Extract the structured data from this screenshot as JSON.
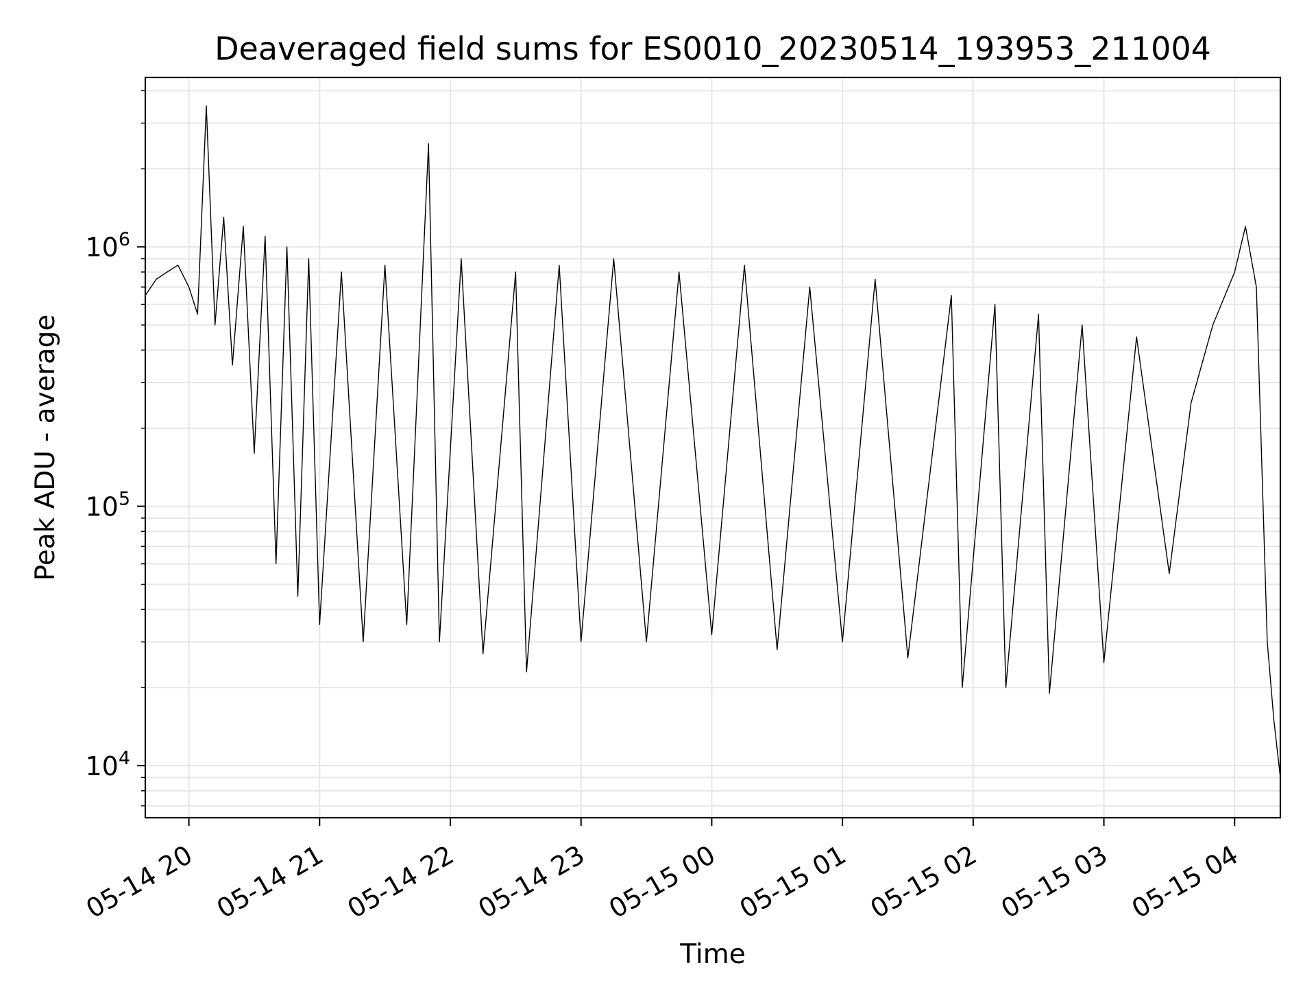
{
  "chart_data": {
    "type": "line",
    "title": "Deaveraged field sums for ES0010_20230514_193953_211004",
    "xlabel": "Time",
    "ylabel": "Peak ADU - average",
    "x_axis": {
      "type": "time",
      "range": [
        "2023-05-14T19:40",
        "2023-05-15T04:21"
      ],
      "ticks": [
        {
          "value": "2023-05-14T20:00",
          "label": "05-14 20"
        },
        {
          "value": "2023-05-14T21:00",
          "label": "05-14 21"
        },
        {
          "value": "2023-05-14T22:00",
          "label": "05-14 22"
        },
        {
          "value": "2023-05-14T23:00",
          "label": "05-14 23"
        },
        {
          "value": "2023-05-15T00:00",
          "label": "05-15 00"
        },
        {
          "value": "2023-05-15T01:00",
          "label": "05-15 01"
        },
        {
          "value": "2023-05-15T02:00",
          "label": "05-15 02"
        },
        {
          "value": "2023-05-15T03:00",
          "label": "05-15 03"
        },
        {
          "value": "2023-05-15T04:00",
          "label": "05-15 04"
        }
      ]
    },
    "y_axis": {
      "scale": "log",
      "range": [
        6300,
        4500000
      ],
      "ticks": [
        {
          "value": 10000,
          "base": "10",
          "exp": "4"
        },
        {
          "value": 100000,
          "base": "10",
          "exp": "5"
        },
        {
          "value": 1000000,
          "base": "10",
          "exp": "6"
        }
      ]
    },
    "grid": true,
    "line_color": "#000000",
    "series": [
      {
        "points": [
          [
            "2023-05-14T19:40",
            650000
          ],
          [
            "2023-05-14T19:45",
            750000
          ],
          [
            "2023-05-14T19:50",
            800000
          ],
          [
            "2023-05-14T19:55",
            850000
          ],
          [
            "2023-05-14T20:00",
            700000
          ],
          [
            "2023-05-14T20:04",
            550000
          ],
          [
            "2023-05-14T20:08",
            3500000
          ],
          [
            "2023-05-14T20:12",
            500000
          ],
          [
            "2023-05-14T20:16",
            1300000
          ],
          [
            "2023-05-14T20:20",
            350000
          ],
          [
            "2023-05-14T20:25",
            1200000
          ],
          [
            "2023-05-14T20:30",
            160000
          ],
          [
            "2023-05-14T20:35",
            1100000
          ],
          [
            "2023-05-14T20:40",
            60000
          ],
          [
            "2023-05-14T20:45",
            1000000
          ],
          [
            "2023-05-14T20:50",
            45000
          ],
          [
            "2023-05-14T20:55",
            900000
          ],
          [
            "2023-05-14T21:00",
            35000
          ],
          [
            "2023-05-14T21:10",
            800000
          ],
          [
            "2023-05-14T21:20",
            30000
          ],
          [
            "2023-05-14T21:30",
            850000
          ],
          [
            "2023-05-14T21:40",
            35000
          ],
          [
            "2023-05-14T21:50",
            2500000
          ],
          [
            "2023-05-14T21:55",
            30000
          ],
          [
            "2023-05-14T22:05",
            900000
          ],
          [
            "2023-05-14T22:15",
            27000
          ],
          [
            "2023-05-14T22:30",
            800000
          ],
          [
            "2023-05-14T22:35",
            23000
          ],
          [
            "2023-05-14T22:50",
            850000
          ],
          [
            "2023-05-14T23:00",
            30000
          ],
          [
            "2023-05-14T23:15",
            900000
          ],
          [
            "2023-05-14T23:30",
            30000
          ],
          [
            "2023-05-14T23:45",
            800000
          ],
          [
            "2023-05-15T00:00",
            32000
          ],
          [
            "2023-05-15T00:15",
            850000
          ],
          [
            "2023-05-15T00:30",
            28000
          ],
          [
            "2023-05-15T00:45",
            700000
          ],
          [
            "2023-05-15T01:00",
            30000
          ],
          [
            "2023-05-15T01:15",
            750000
          ],
          [
            "2023-05-15T01:30",
            26000
          ],
          [
            "2023-05-15T01:50",
            650000
          ],
          [
            "2023-05-15T01:55",
            20000
          ],
          [
            "2023-05-15T02:10",
            600000
          ],
          [
            "2023-05-15T02:15",
            20000
          ],
          [
            "2023-05-15T02:30",
            550000
          ],
          [
            "2023-05-15T02:35",
            19000
          ],
          [
            "2023-05-15T02:50",
            500000
          ],
          [
            "2023-05-15T03:00",
            25000
          ],
          [
            "2023-05-15T03:15",
            450000
          ],
          [
            "2023-05-15T03:30",
            55000
          ],
          [
            "2023-05-15T03:40",
            250000
          ],
          [
            "2023-05-15T03:50",
            500000
          ],
          [
            "2023-05-15T04:00",
            800000
          ],
          [
            "2023-05-15T04:05",
            1200000
          ],
          [
            "2023-05-15T04:10",
            700000
          ],
          [
            "2023-05-15T04:15",
            30000
          ],
          [
            "2023-05-15T04:18",
            15000
          ],
          [
            "2023-05-15T04:21",
            9000
          ]
        ]
      }
    ]
  }
}
